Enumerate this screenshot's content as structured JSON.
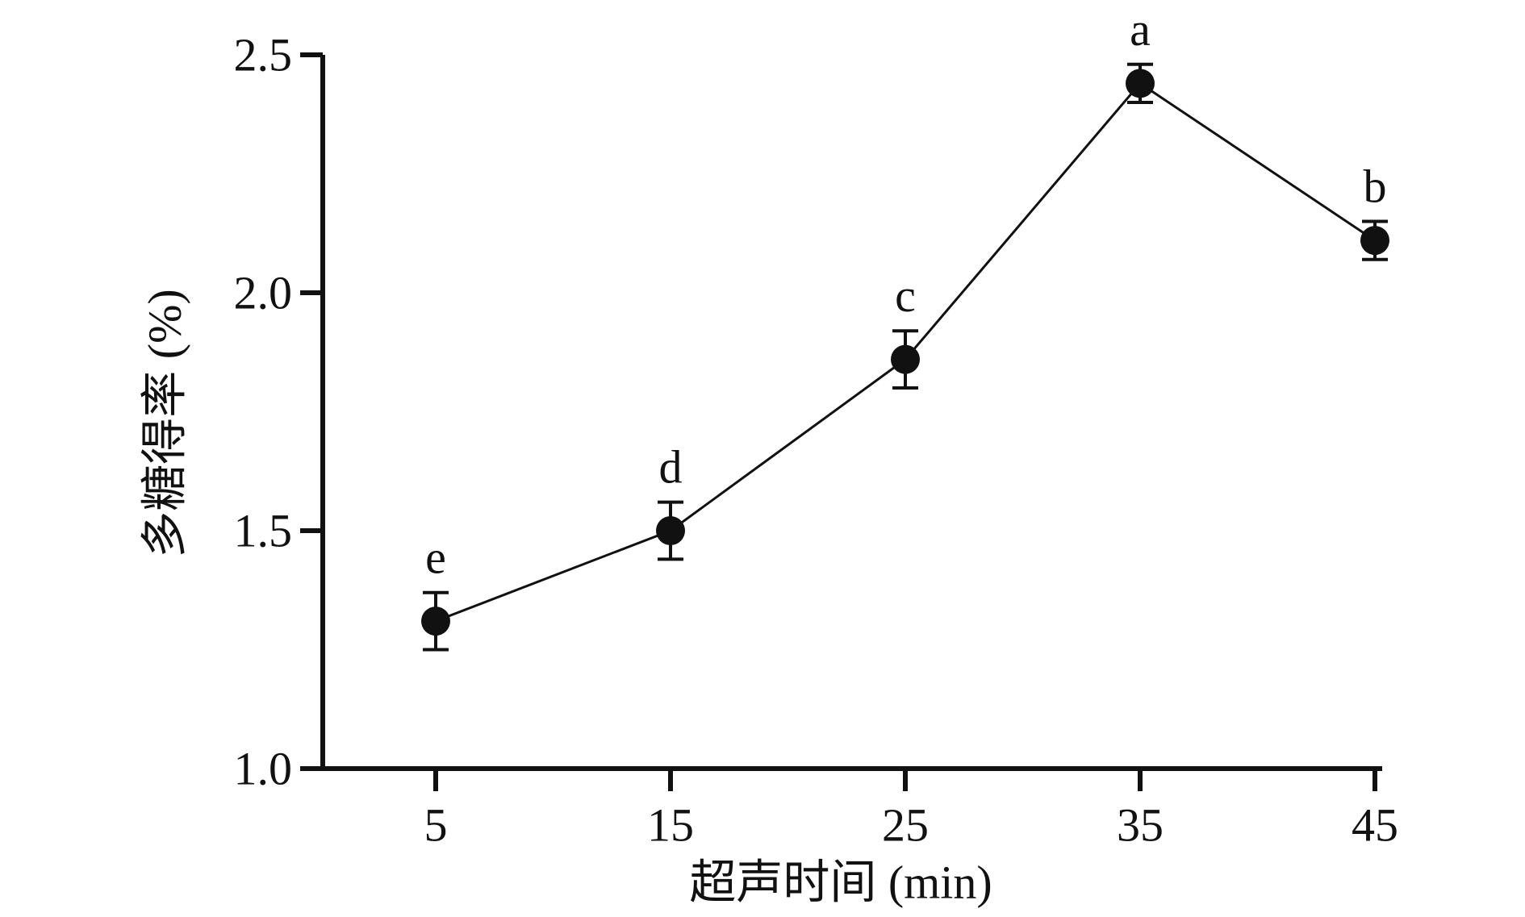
{
  "chart_data": {
    "type": "line",
    "xlabel": "超声时间 (min)",
    "ylabel": "多糖得率 (%)",
    "x_ticks": [
      "5",
      "15",
      "25",
      "35",
      "45"
    ],
    "y_ticks": [
      "1.0",
      "1.5",
      "2.0",
      "2.5"
    ],
    "ylim": [
      1.0,
      2.5
    ],
    "grid": false,
    "legend": "none",
    "series": [
      {
        "x": [
          5,
          15,
          25,
          35,
          45
        ],
        "values": [
          1.31,
          1.5,
          1.86,
          2.44,
          2.11
        ],
        "errors": [
          0.06,
          0.06,
          0.06,
          0.04,
          0.04
        ],
        "labels": [
          "e",
          "d",
          "c",
          "a",
          "b"
        ]
      }
    ],
    "colors": {
      "line": "#111111",
      "marker": "#111111",
      "axis": "#111111"
    }
  }
}
